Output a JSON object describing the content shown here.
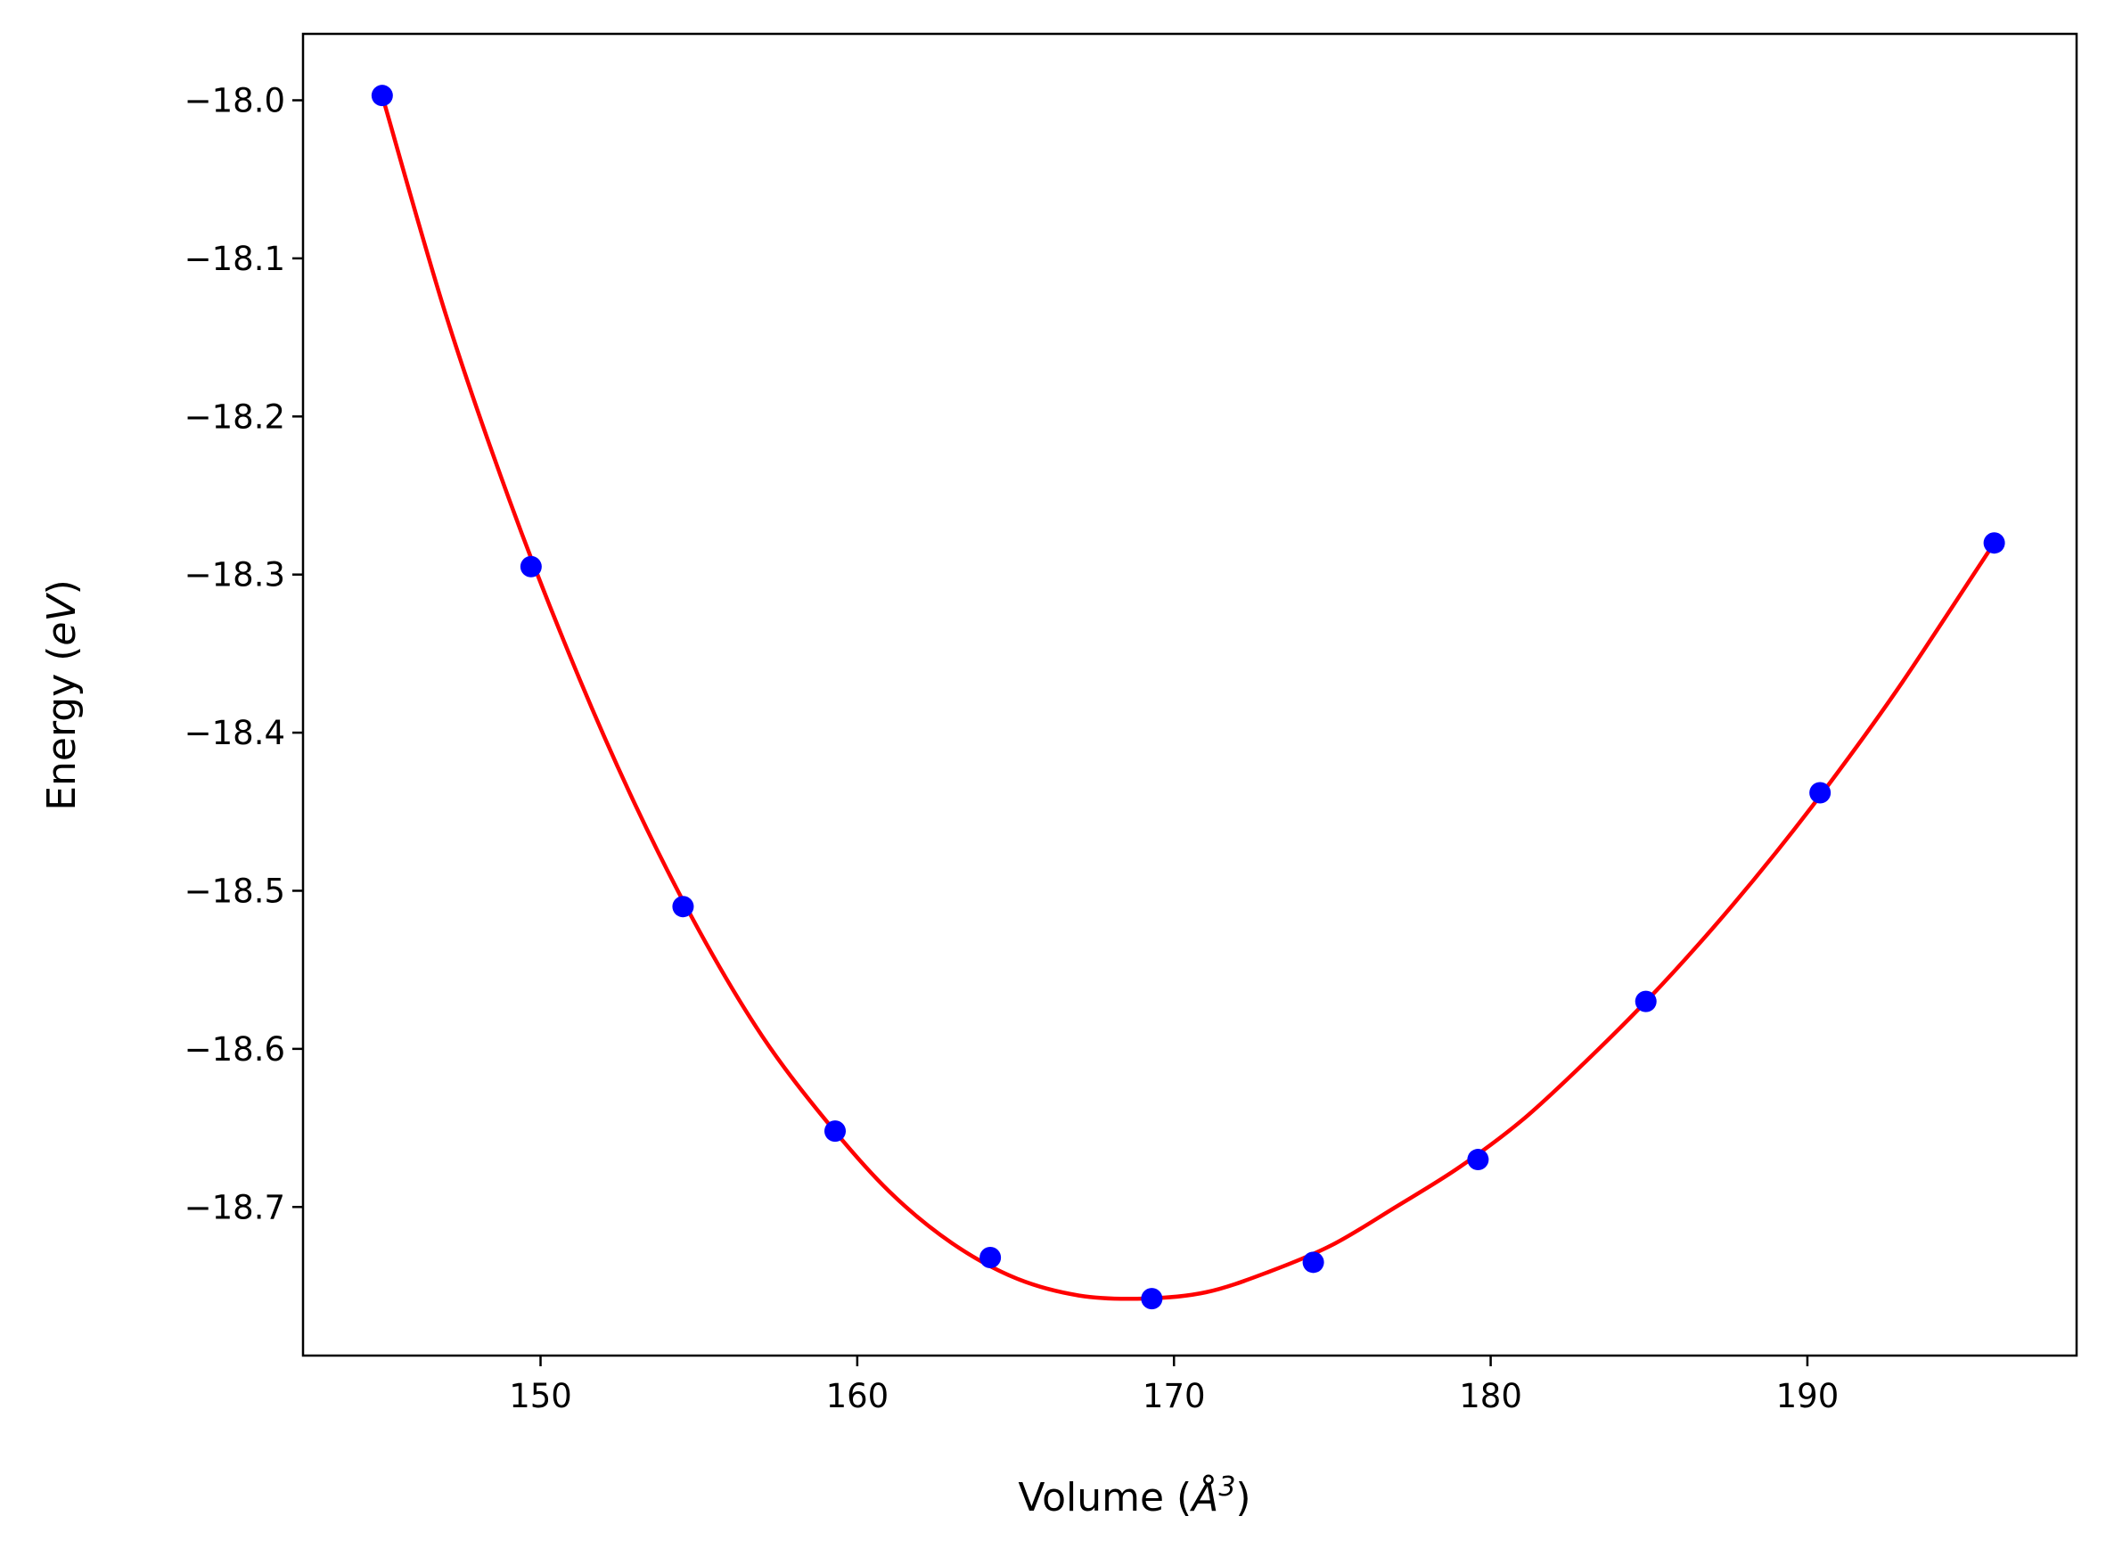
{
  "chart_data": {
    "type": "scatter",
    "title": "",
    "xlabel": {
      "text": "Volume (",
      "symbol": "Å",
      "superscript": "3",
      "close": ")"
    },
    "ylabel": {
      "text": "Energy (",
      "italic": "eV",
      "close": ")"
    },
    "xlim": [
      142.5,
      198.5
    ],
    "ylim": [
      -18.794,
      -17.958
    ],
    "xticks": [
      150,
      160,
      170,
      180,
      190
    ],
    "xtick_labels": [
      "150",
      "160",
      "170",
      "180",
      "190"
    ],
    "yticks": [
      -18.0,
      -18.1,
      -18.2,
      -18.3,
      -18.4,
      -18.5,
      -18.6,
      -18.7
    ],
    "ytick_labels": [
      "−18.0",
      "−18.1",
      "−18.2",
      "−18.3",
      "−18.4",
      "−18.5",
      "−18.6",
      "−18.7"
    ],
    "grid": false,
    "legend": "none",
    "series": [
      {
        "kind": "points",
        "color": "#0000ff",
        "x": [
          145.0,
          149.7,
          154.5,
          159.3,
          164.2,
          169.3,
          174.4,
          179.6,
          184.9,
          190.4,
          195.9
        ],
        "y": [
          -17.997,
          -18.295,
          -18.51,
          -18.652,
          -18.732,
          -18.758,
          -18.735,
          -18.67,
          -18.57,
          -18.438,
          -18.28
        ]
      },
      {
        "kind": "fit-line",
        "color": "#ff0000",
        "x": [
          145.0,
          147.0,
          149.0,
          151.0,
          153.0,
          155.0,
          157.0,
          159.0,
          161.0,
          163.0,
          165.0,
          167.0,
          169.0,
          171.0,
          173.0,
          175.0,
          177.0,
          179.0,
          181.0,
          183.0,
          185.0,
          187.0,
          189.0,
          191.0,
          193.0,
          195.9
        ],
        "y": [
          -17.997,
          -18.135,
          -18.252,
          -18.355,
          -18.446,
          -18.525,
          -18.592,
          -18.645,
          -18.69,
          -18.723,
          -18.745,
          -18.756,
          -18.758,
          -18.754,
          -18.741,
          -18.724,
          -18.7,
          -18.675,
          -18.645,
          -18.608,
          -18.568,
          -18.524,
          -18.476,
          -18.424,
          -18.368,
          -18.28
        ]
      }
    ]
  }
}
